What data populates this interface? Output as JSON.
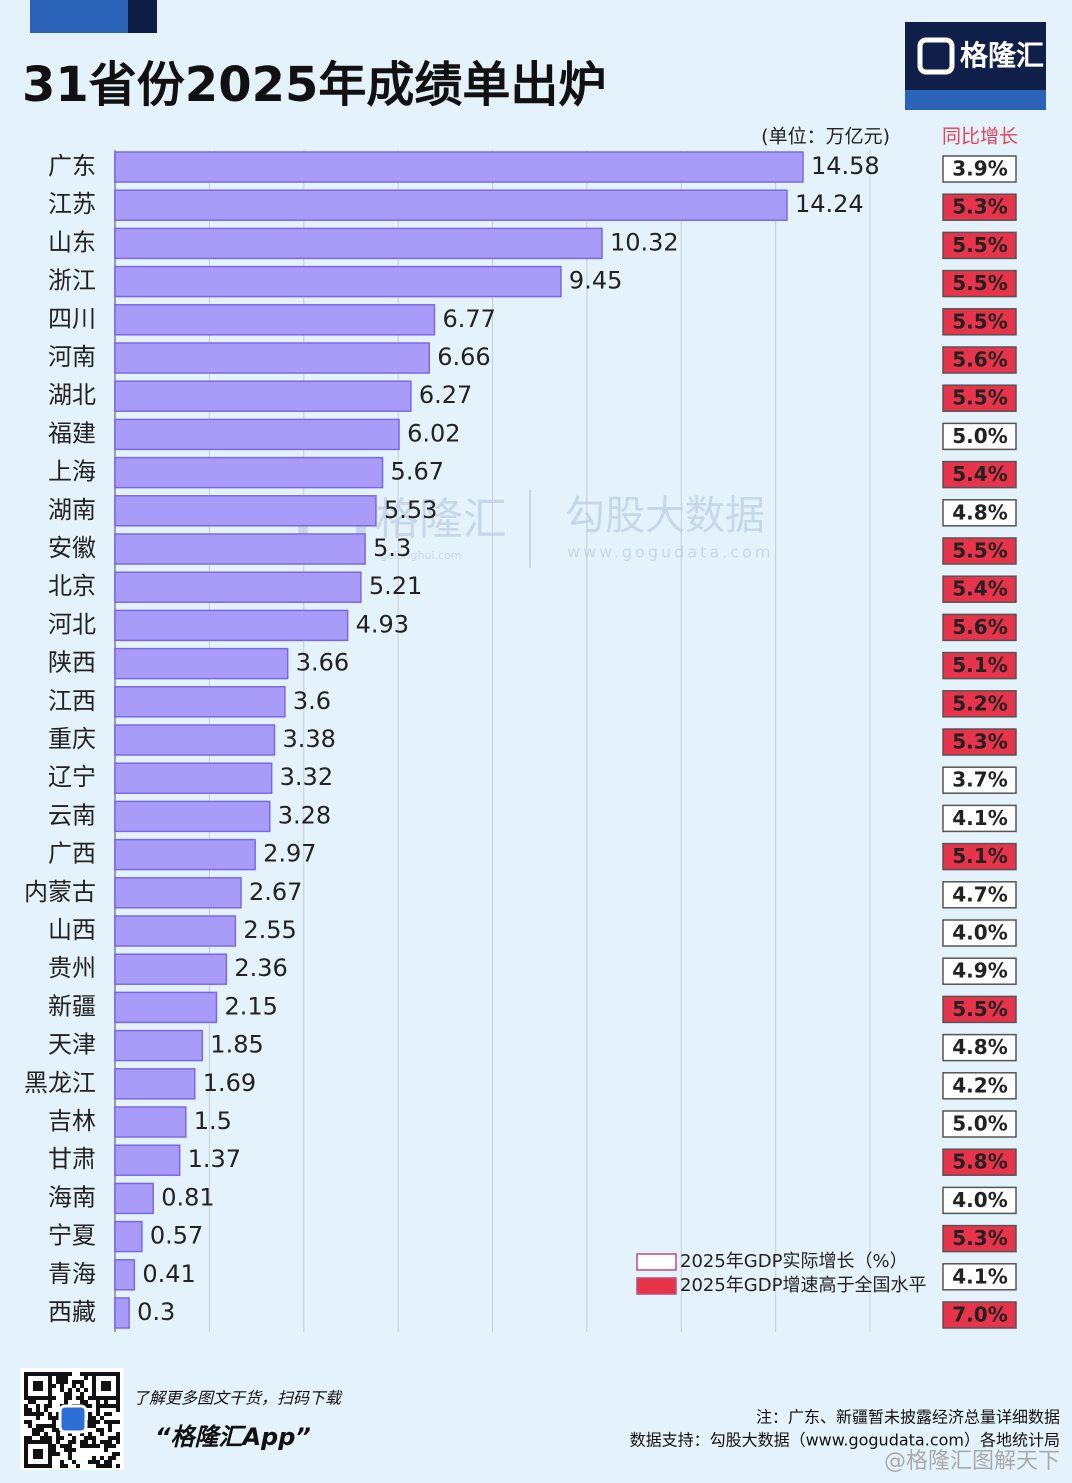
{
  "chart_data": {
    "type": "bar",
    "title": "31省份2025年成绩单出炉",
    "unit": "(单位：万亿元)",
    "brand": "格隆汇",
    "categories": [
      "广东",
      "江苏",
      "山东",
      "浙江",
      "四川",
      "河南",
      "湖北",
      "福建",
      "上海",
      "湖南",
      "安徽",
      "北京",
      "河北",
      "陕西",
      "江西",
      "重庆",
      "辽宁",
      "云南",
      "广西",
      "内蒙古",
      "山西",
      "贵州",
      "新疆",
      "天津",
      "黑龙江",
      "吉林",
      "甘肃",
      "海南",
      "宁夏",
      "青海",
      "西藏"
    ],
    "values": [
      14.58,
      14.24,
      10.32,
      9.45,
      6.77,
      6.66,
      6.27,
      6.02,
      5.67,
      5.53,
      5.3,
      5.21,
      4.93,
      3.66,
      3.6,
      3.38,
      3.32,
      3.28,
      2.97,
      2.67,
      2.55,
      2.36,
      2.15,
      1.85,
      1.69,
      1.5,
      1.37,
      0.81,
      0.57,
      0.41,
      0.3
    ],
    "color": "#a99cf8",
    "xlim": [
      0,
      16
    ],
    "xticks": [
      0,
      2,
      4,
      6,
      8,
      10,
      12,
      14,
      16
    ],
    "grid": true,
    "growth": {
      "header": "同比增长",
      "values": [
        3.9,
        5.3,
        5.5,
        5.5,
        5.5,
        5.6,
        5.5,
        5.0,
        5.4,
        4.8,
        5.5,
        5.4,
        5.6,
        5.1,
        5.2,
        5.3,
        3.7,
        4.1,
        5.1,
        4.7,
        4.0,
        4.9,
        5.5,
        4.8,
        4.2,
        5.0,
        5.8,
        4.0,
        5.3,
        4.1,
        7.0
      ],
      "value_labels": [
        "3.9%",
        "5.3%",
        "5.5%",
        "5.5%",
        "5.5%",
        "5.6%",
        "5.5%",
        "5.0%",
        "5.4%",
        "4.8%",
        "5.5%",
        "5.4%",
        "5.6%",
        "5.1%",
        "5.2%",
        "5.3%",
        "3.7%",
        "4.1%",
        "5.1%",
        "4.7%",
        "4.0%",
        "4.9%",
        "5.5%",
        "4.8%",
        "4.2%",
        "5.0%",
        "5.8%",
        "4.0%",
        "5.3%",
        "4.1%",
        "7.0%"
      ],
      "above_national": [
        false,
        true,
        true,
        true,
        true,
        true,
        true,
        false,
        true,
        false,
        true,
        true,
        true,
        true,
        true,
        true,
        false,
        false,
        true,
        false,
        false,
        false,
        true,
        false,
        false,
        false,
        true,
        false,
        true,
        false,
        true
      ]
    },
    "legend": [
      {
        "name": "2025年GDP实际增长（%）",
        "color": "#ffffff"
      },
      {
        "name": "2025年GDP增速高于全国水平",
        "color": "#e8344a"
      }
    ],
    "watermark": [
      "格隆汇",
      "gelonghui.com",
      "勾股大数据",
      "www.gogudata.com"
    ],
    "footer": {
      "promo": "了解更多图文干货，扫码下载",
      "app": "“格隆汇App”",
      "note": "注：广东、新疆暂未披露经济总量详细数据",
      "source": "数据支持：勾股大数据（www.gogudata.com）各地统计局",
      "handle": "@格隆汇图解天下"
    }
  }
}
